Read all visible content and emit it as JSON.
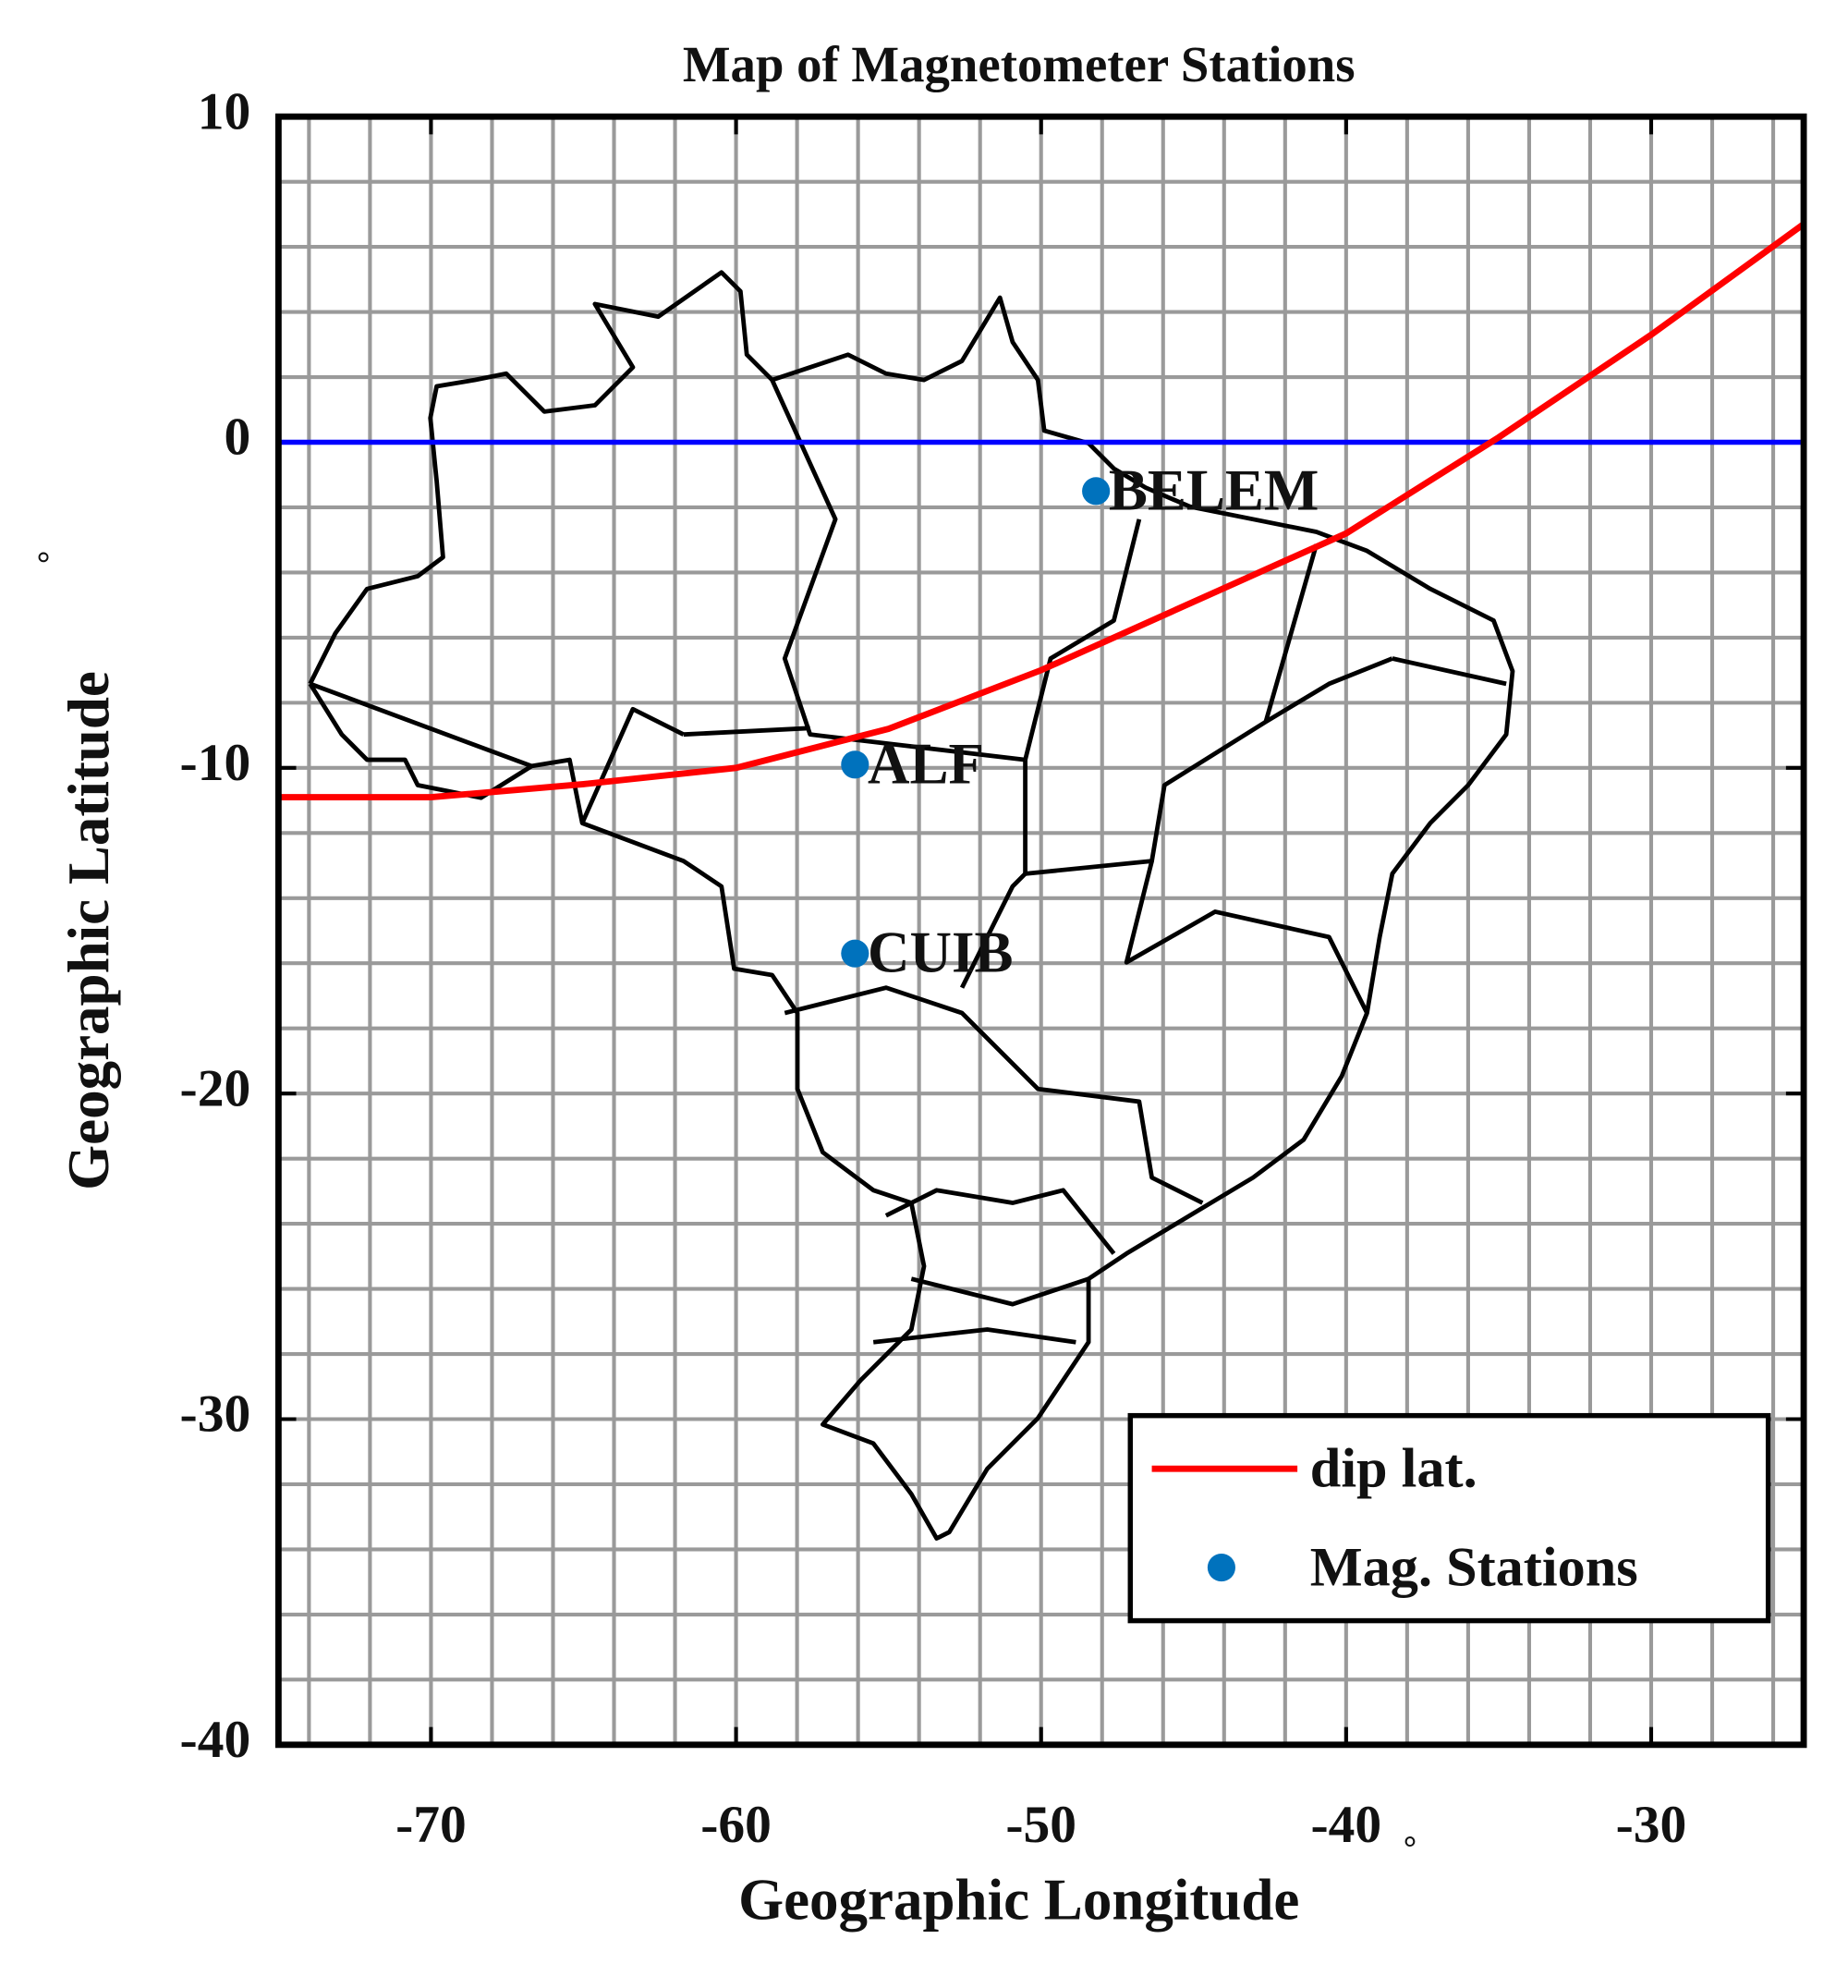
{
  "chart_data": {
    "type": "map",
    "title": "Map of Magnetometer Stations",
    "xlabel": "Geographic Longitude",
    "ylabel": "Geographic Latitude",
    "x_unit": "°",
    "y_unit": "°",
    "xlim": [
      -75,
      -25
    ],
    "ylim": [
      -40,
      10
    ],
    "xticks": [
      -70,
      -60,
      -50,
      -40,
      -30
    ],
    "yticks": [
      -40,
      -30,
      -20,
      -10,
      0,
      10
    ],
    "xminorticks": [
      -74,
      -72,
      -70,
      -68,
      -66,
      -64,
      -62,
      -60,
      -58,
      -56,
      -54,
      -52,
      -50,
      -48,
      -46,
      -44,
      -42,
      -40,
      -38,
      -36,
      -34,
      -32,
      -30,
      -28,
      -26
    ],
    "yminorticks": [
      -38,
      -36,
      -34,
      -32,
      -30,
      -28,
      -26,
      -24,
      -22,
      -20,
      -18,
      -16,
      -14,
      -12,
      -10,
      -8,
      -6,
      -4,
      -2,
      0,
      2,
      4,
      6,
      8
    ],
    "grid": true,
    "grid_color": "#9a9a9a",
    "reference_lines": [
      {
        "y": 0,
        "color": "#0000ff"
      }
    ],
    "legend": "lower right",
    "series": [
      {
        "name": "dip lat.",
        "type": "line",
        "color": "#ff0000",
        "x": [
          -75,
          -70,
          -65,
          -60,
          -55,
          -50,
          -45,
          -40,
          -35,
          -30,
          -25
        ],
        "y": [
          -10.9,
          -10.9,
          -10.5,
          -10.0,
          -8.8,
          -7.0,
          -4.9,
          -2.8,
          0.15,
          3.3,
          6.7
        ]
      },
      {
        "name": "Mag. Stations",
        "type": "scatter",
        "color": "#0072bd",
        "x": [
          -48.2,
          -56.1,
          -56.1
        ],
        "y": [
          -1.5,
          -9.9,
          -15.7
        ],
        "labels": [
          "BELEM",
          "ALF",
          "CUIB"
        ],
        "label_colors": [
          "#1010d0",
          "#8040a0",
          "#ff1010"
        ]
      }
    ]
  }
}
